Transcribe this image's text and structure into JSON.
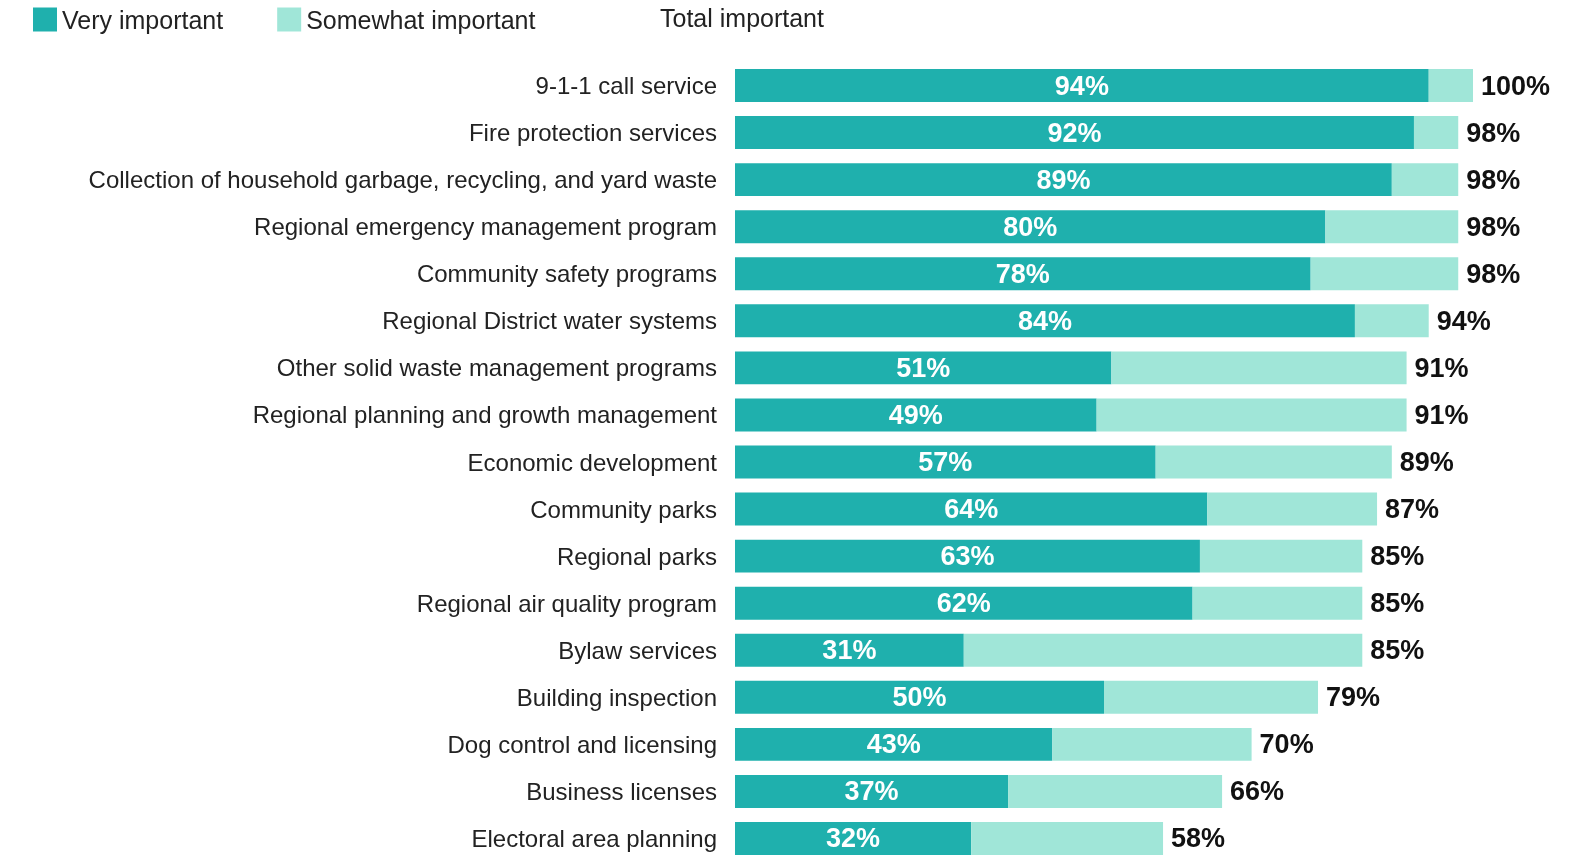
{
  "chart_data": {
    "type": "bar",
    "orientation": "horizontal",
    "stacked": true,
    "categories": [
      "9-1-1 call service",
      "Fire protection services",
      "Collection of household garbage, recycling, and yard waste",
      "Regional emergency management program",
      "Community safety programs",
      "Regional District water systems",
      "Other solid waste management programs",
      "Regional planning and growth management",
      "Economic development",
      "Community parks",
      "Regional parks",
      "Regional air quality program",
      "Bylaw services",
      "Building inspection",
      "Dog control and licensing",
      "Business licenses",
      "Electoral area planning"
    ],
    "series": [
      {
        "name": "Very important",
        "color": "#1fb0ad",
        "values": [
          94,
          92,
          89,
          80,
          78,
          84,
          51,
          49,
          57,
          64,
          63,
          62,
          31,
          50,
          43,
          37,
          32
        ],
        "value_labels": [
          "94%",
          "92%",
          "89%",
          "80%",
          "78%",
          "84%",
          "51%",
          "49%",
          "57%",
          "64%",
          "63%",
          "62%",
          "31%",
          "50%",
          "43%",
          "37%",
          "32%"
        ]
      },
      {
        "name": "Somewhat important",
        "color": "#a0e6d8",
        "values": [
          6,
          6,
          9,
          18,
          20,
          10,
          40,
          42,
          32,
          23,
          22,
          23,
          54,
          29,
          27,
          29,
          26
        ]
      }
    ],
    "totals": [
      "100%",
      "98%",
      "98%",
      "98%",
      "98%",
      "94%",
      "91%",
      "91%",
      "89%",
      "87%",
      "85%",
      "85%",
      "85%",
      "79%",
      "70%",
      "66%",
      "58%"
    ],
    "annotations": [
      "Total important"
    ],
    "xlim": [
      0,
      100
    ],
    "legend": "top left"
  }
}
